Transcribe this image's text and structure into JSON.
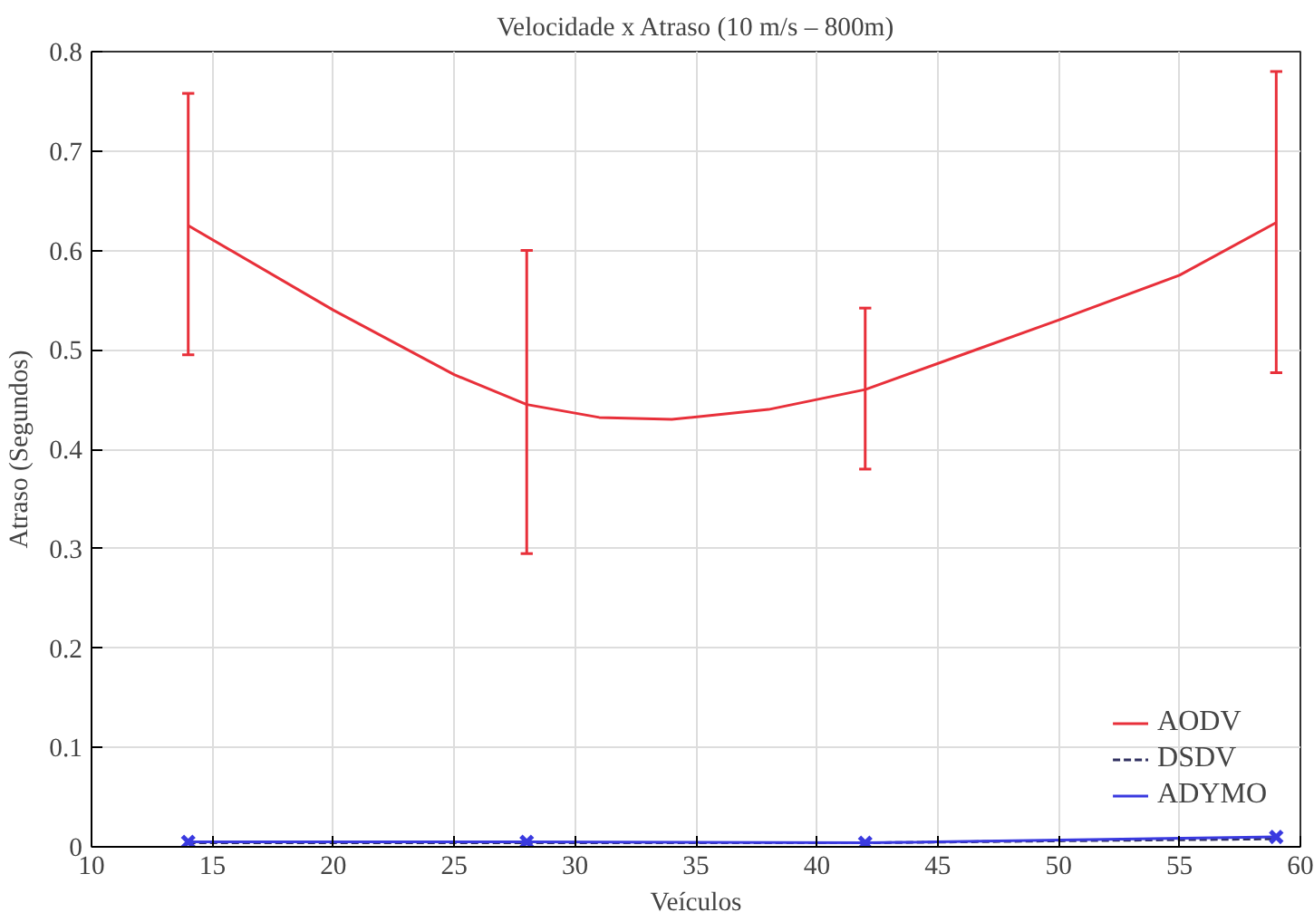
{
  "chart_data": {
    "type": "line",
    "title": "Velocidade x Atraso (10 m/s – 800m)",
    "xlabel": "Veículos",
    "ylabel": "Atraso (Segundos)",
    "xlim": [
      10,
      60
    ],
    "xticks": [
      10,
      15,
      20,
      25,
      30,
      35,
      40,
      45,
      50,
      55,
      60
    ],
    "ylim": [
      0,
      0.8
    ],
    "yticks": [
      0,
      0.1,
      0.2,
      0.3,
      0.4,
      0.5,
      0.6,
      0.7,
      0.8
    ],
    "grid": true,
    "legend": "bottom right",
    "series": [
      {
        "name": "AODV",
        "color": "#e8303a",
        "line_style": "solid",
        "marker": "none",
        "x": [
          14,
          20,
          25,
          28,
          31,
          34,
          38,
          42,
          46,
          50,
          55,
          59
        ],
        "values": [
          0.625,
          0.54,
          0.475,
          0.445,
          0.432,
          0.43,
          0.44,
          0.46,
          0.495,
          0.53,
          0.575,
          0.628
        ],
        "errors": [
          [
            0.495,
            0.758
          ],
          null,
          null,
          [
            0.295,
            0.6
          ],
          null,
          null,
          null,
          [
            0.38,
            0.542
          ],
          null,
          null,
          null,
          [
            0.477,
            0.78
          ]
        ]
      },
      {
        "name": "DSDV",
        "color": "#303060",
        "line_style": "dashed",
        "marker": "none",
        "x": [
          14,
          28,
          42,
          50,
          59
        ],
        "values": [
          0.004,
          0.004,
          0.004,
          0.006,
          0.008
        ]
      },
      {
        "name": "ADYMO",
        "color": "#3a3ae0",
        "line_style": "solid",
        "marker": "cross",
        "x": [
          14,
          28,
          42,
          59
        ],
        "values": [
          0.005,
          0.005,
          0.004,
          0.01
        ]
      }
    ]
  }
}
